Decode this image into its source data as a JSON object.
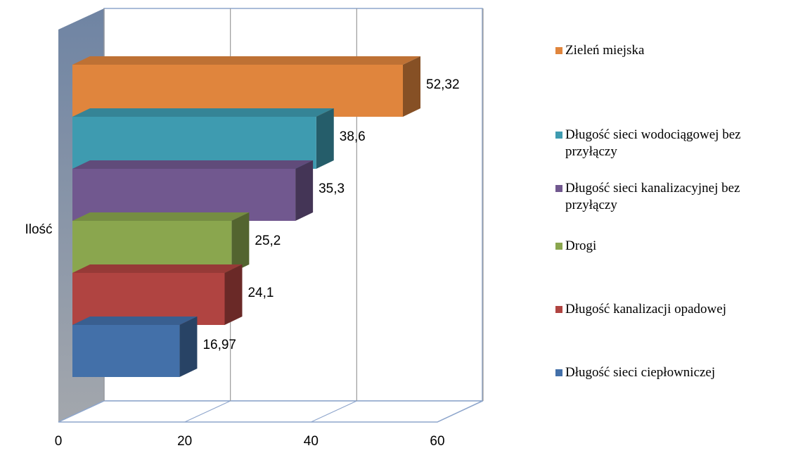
{
  "chart_data": {
    "type": "bar3d",
    "orientation": "horizontal",
    "categories": [
      "Ilość"
    ],
    "series": [
      {
        "name": "Zieleń miejska",
        "color": "#e0853d",
        "values": [
          52.32
        ],
        "value_labels": [
          "52,32"
        ]
      },
      {
        "name": "Długość sieci wodociągowej bez przyłączy",
        "color": "#3e9bb0",
        "values": [
          38.6
        ],
        "value_labels": [
          "38,6"
        ]
      },
      {
        "name": "Długość sieci kanalizacyjnej bez przyłączy",
        "color": "#71588f",
        "values": [
          35.3
        ],
        "value_labels": [
          "35,3"
        ]
      },
      {
        "name": "Drogi",
        "color": "#8aa64e",
        "values": [
          25.2
        ],
        "value_labels": [
          "25,2"
        ]
      },
      {
        "name": "Długość kanalizacji opadowej",
        "color": "#b04441",
        "values": [
          24.1
        ],
        "value_labels": [
          "24,1"
        ]
      },
      {
        "name": "Długość sieci ciepłowniczej",
        "color": "#4370a9",
        "values": [
          16.97
        ],
        "value_labels": [
          "16,97"
        ]
      }
    ],
    "xlim": [
      0,
      60
    ],
    "xticks": [
      0,
      20,
      40,
      60
    ],
    "grid": true,
    "legend": "right"
  }
}
